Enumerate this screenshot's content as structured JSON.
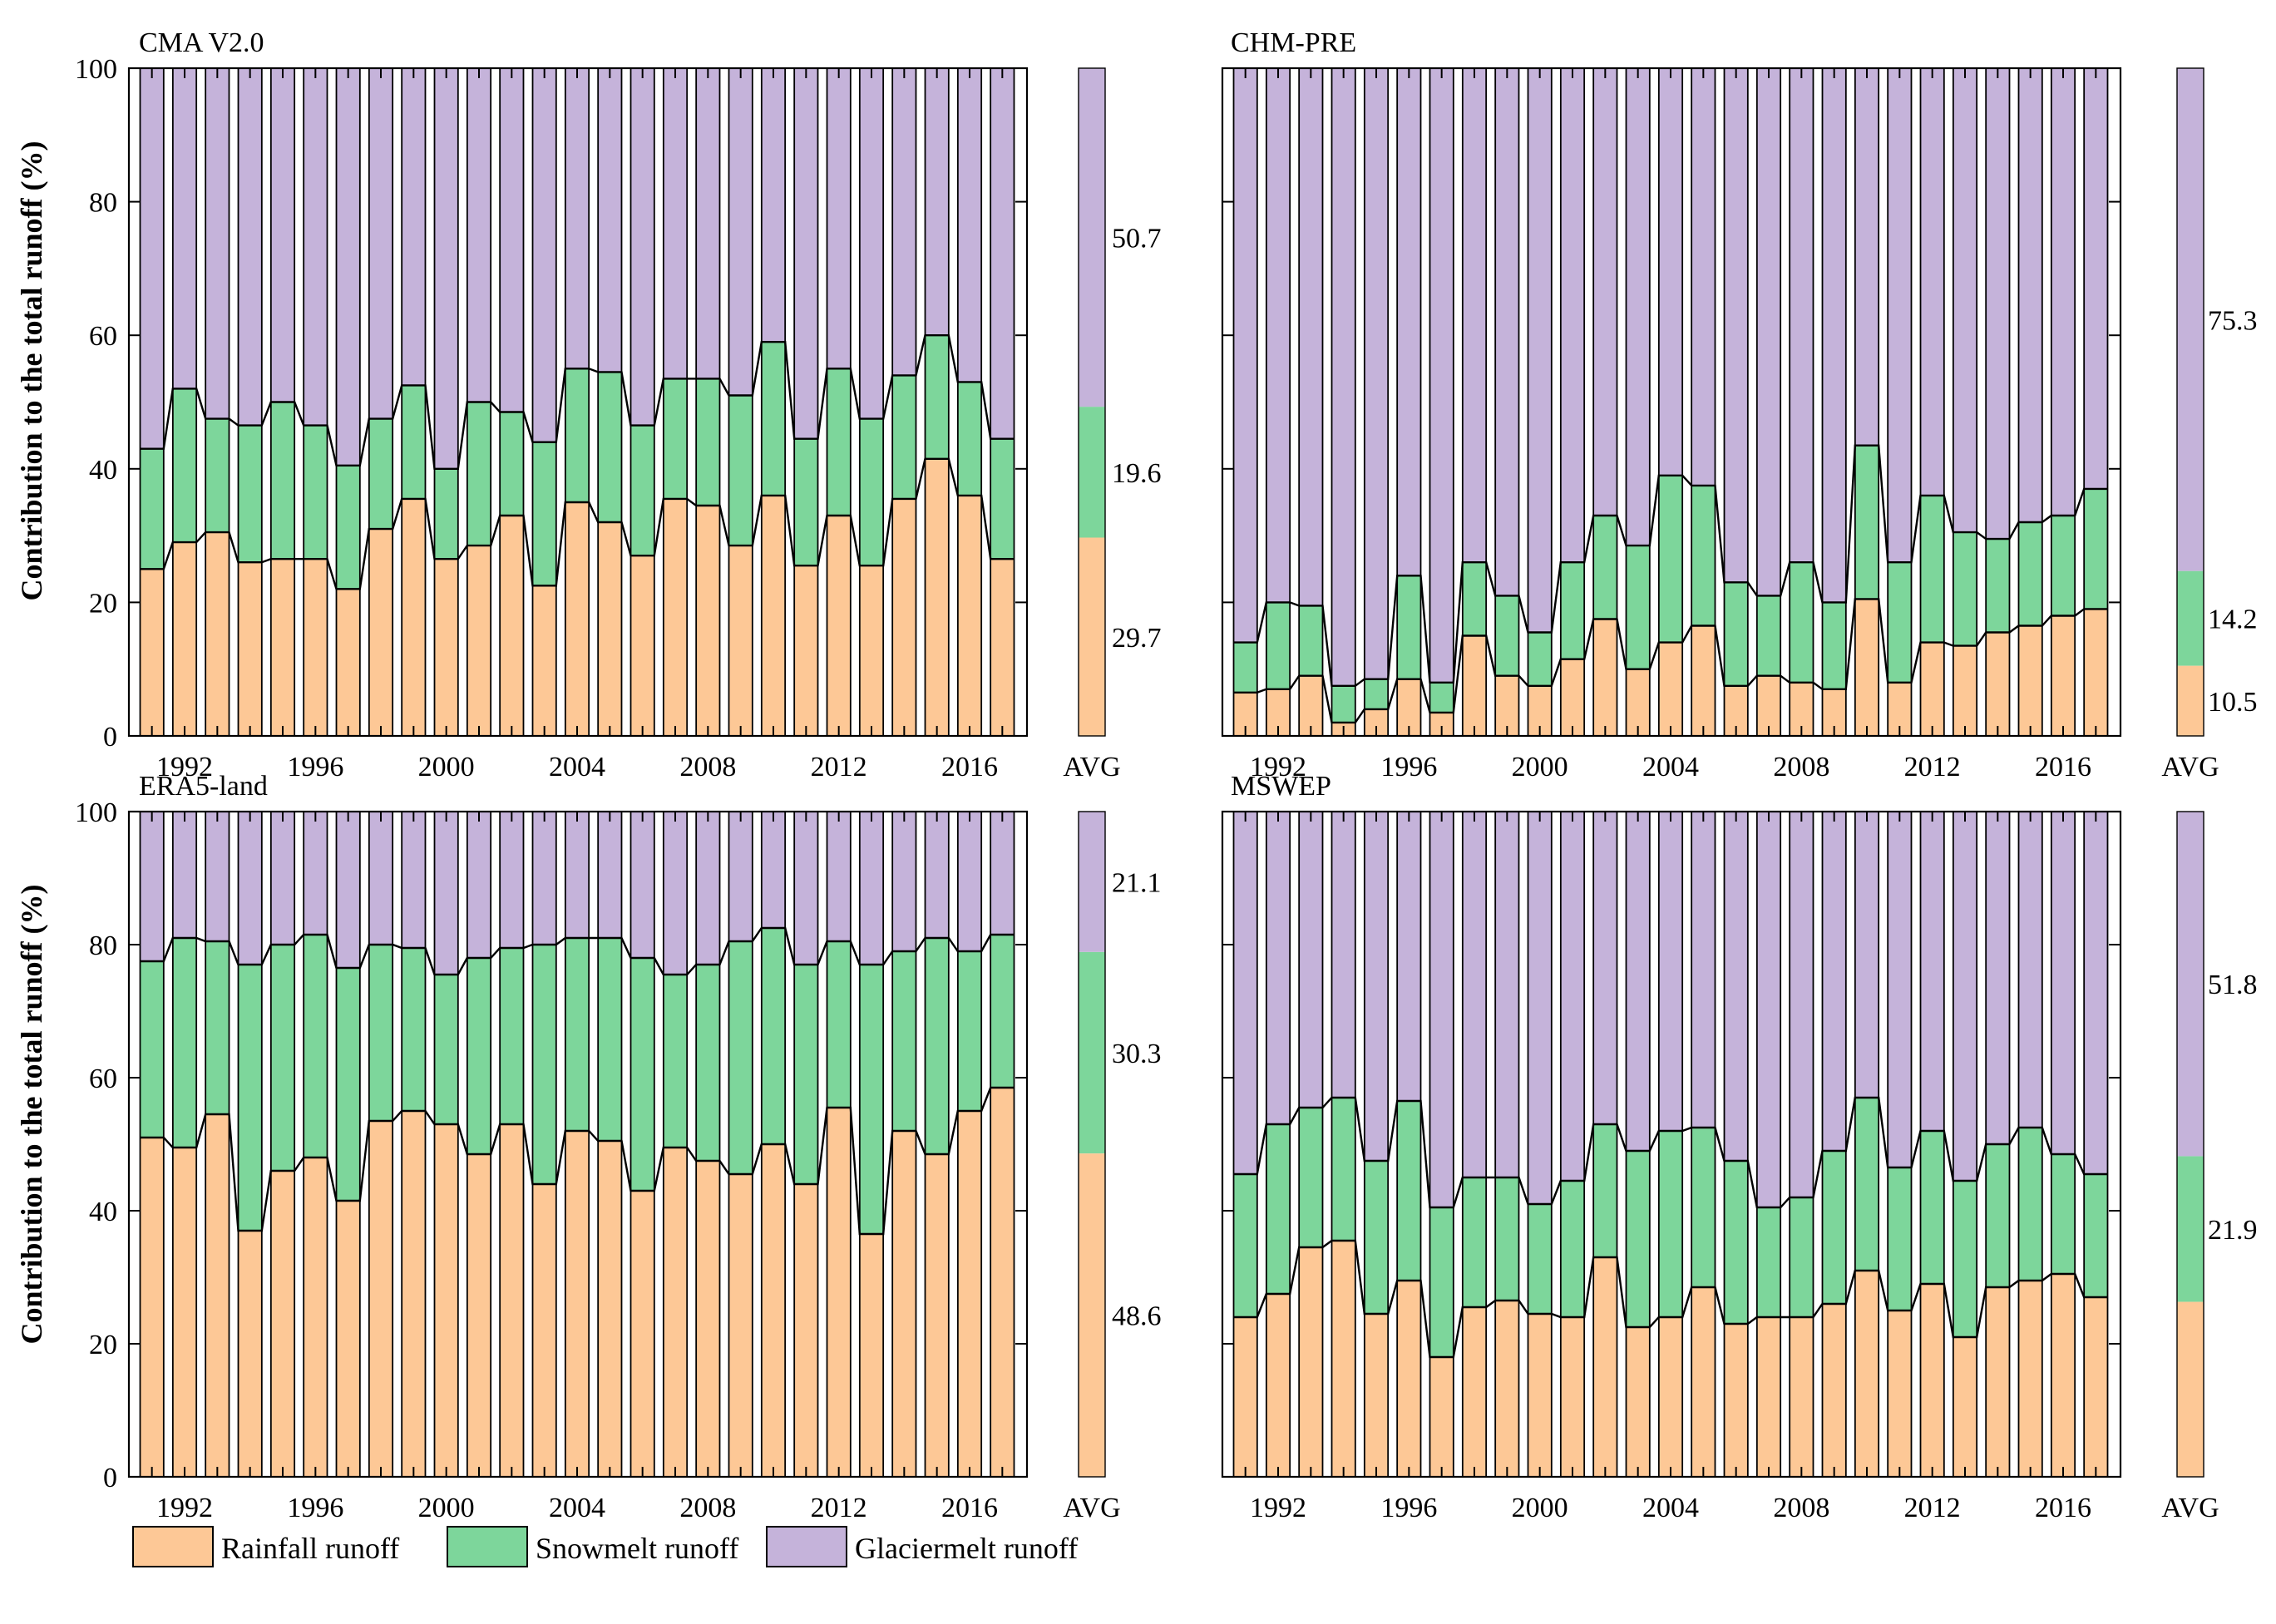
{
  "chart_data": {
    "type": "bar",
    "stacked": true,
    "ylabel": "Contribution to the total runoff (%)",
    "ylim": [
      0,
      100
    ],
    "yticks": [
      0,
      20,
      40,
      60,
      80,
      100
    ],
    "xticks": [
      "1992",
      "1996",
      "2000",
      "2004",
      "2008",
      "2012",
      "2016"
    ],
    "years": [
      1991,
      1992,
      1993,
      1994,
      1995,
      1996,
      1997,
      1998,
      1999,
      2000,
      2001,
      2002,
      2003,
      2004,
      2005,
      2006,
      2007,
      2008,
      2009,
      2010,
      2011,
      2012,
      2013,
      2014,
      2015,
      2016,
      2017
    ],
    "avg_label": "AVG",
    "legend": [
      {
        "name": "Rainfall runoff",
        "color": "#FDC896"
      },
      {
        "name": "Snowmelt runoff",
        "color": "#7DD69B"
      },
      {
        "name": "Glaciermelt runoff",
        "color": "#C5B3DA"
      }
    ],
    "panels": [
      {
        "title": "CMA V2.0",
        "rain": [
          25,
          29,
          30.5,
          26,
          26.5,
          26.5,
          22,
          31,
          35.5,
          26.5,
          28.5,
          33,
          22.5,
          35,
          32,
          27,
          35.5,
          34.5,
          28.5,
          36,
          25.5,
          33,
          25.5,
          35.5,
          41.5,
          36,
          26.5
        ],
        "rain_snow": [
          43,
          52,
          47.5,
          46.5,
          50,
          46.5,
          40.5,
          47.5,
          52.5,
          40,
          50,
          48.5,
          44,
          55,
          54.5,
          46.5,
          53.5,
          53.5,
          51,
          59,
          44.5,
          55,
          47.5,
          54,
          60,
          53,
          44.5
        ],
        "avg": {
          "rain": 29.7,
          "snow": 19.6,
          "glacier": 50.7
        },
        "avg_labels": [
          "29.7",
          "19.6",
          "50.7"
        ]
      },
      {
        "title": "CHM-PRE",
        "rain": [
          6.5,
          7,
          9,
          2,
          4,
          8.5,
          3.5,
          15,
          9,
          7.5,
          11.5,
          17.5,
          10,
          14,
          16.5,
          7.5,
          9,
          8,
          7,
          20.5,
          8,
          14,
          13.5,
          15.5,
          16.5,
          18,
          19
        ],
        "rain_snow": [
          14,
          20,
          19.5,
          7.5,
          8.5,
          24,
          8,
          26,
          21,
          15.5,
          26,
          33,
          28.5,
          39,
          37.5,
          23,
          21,
          26,
          20,
          43.5,
          26,
          36,
          30.5,
          29.5,
          32,
          33,
          37
        ],
        "avg": {
          "rain": 10.5,
          "snow": 14.2,
          "glacier": 75.3
        },
        "avg_labels": [
          "10.5",
          "14.2",
          "75.3"
        ]
      },
      {
        "title": "ERA5-land",
        "rain": [
          51,
          49.5,
          54.5,
          37,
          46,
          48,
          41.5,
          53.5,
          55,
          53,
          48.5,
          53,
          44,
          52,
          50.5,
          43,
          49.5,
          47.5,
          45.5,
          50,
          44,
          55.5,
          36.5,
          52,
          48.5,
          55,
          58.5
        ],
        "rain_snow": [
          77.5,
          81,
          80.5,
          77,
          80,
          81.5,
          76.5,
          80,
          79.5,
          75.5,
          78,
          79.5,
          80,
          81,
          81,
          78,
          75.5,
          77,
          80.5,
          82.5,
          77,
          80.5,
          77,
          79,
          81,
          79,
          81.5
        ],
        "avg": {
          "rain": 48.6,
          "snow": 30.3,
          "glacier": 21.1
        },
        "avg_labels": [
          "48.6",
          "30.3",
          "21.1"
        ]
      },
      {
        "title": "MSWEP",
        "rain": [
          24,
          27.5,
          34.5,
          35.5,
          24.5,
          29.5,
          18,
          25.5,
          26.5,
          24.5,
          24,
          33,
          22.5,
          24,
          28.5,
          23,
          24,
          24,
          26,
          31,
          25,
          29,
          21,
          28.5,
          29.5,
          30.5,
          27
        ],
        "rain_snow": [
          45.5,
          53,
          55.5,
          57,
          47.5,
          56.5,
          40.5,
          45,
          45,
          41,
          44.5,
          53,
          49,
          52,
          52.5,
          47.5,
          40.5,
          42,
          49,
          57,
          46.5,
          52,
          44.5,
          50,
          52.5,
          48.5,
          45.5
        ],
        "avg": {
          "rain": 26.3,
          "snow": 21.9,
          "glacier": 51.8
        },
        "avg_labels": [
          "",
          "21.9",
          "51.8"
        ]
      }
    ]
  }
}
